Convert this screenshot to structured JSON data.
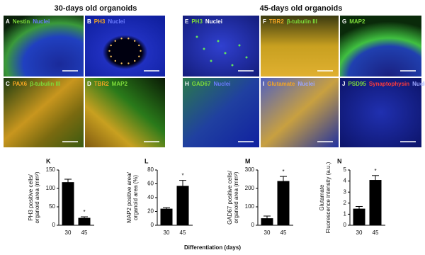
{
  "headings": [
    "30-days old organoids",
    "45-days old organoids"
  ],
  "panels": [
    {
      "letter": "A",
      "label": [
        {
          "text": "Nestin",
          "color": "#7ddc3a"
        },
        {
          "text": "Nuclei",
          "color": "#6b7bff"
        }
      ]
    },
    {
      "letter": "B",
      "label": [
        {
          "text": "PH3",
          "color": "#f5a623"
        },
        {
          "text": "Nuclei",
          "color": "#6b7bff"
        }
      ]
    },
    {
      "letter": "C",
      "label": [
        {
          "text": "PAX6",
          "color": "#f5a623"
        },
        {
          "text": "β-tubulin III",
          "color": "#7ddc3a"
        }
      ]
    },
    {
      "letter": "D",
      "label": [
        {
          "text": "TBR2",
          "color": "#f5a623"
        },
        {
          "text": "MAP2",
          "color": "#7ddc3a"
        }
      ]
    },
    {
      "letter": "E",
      "label": [
        {
          "text": "PH3",
          "color": "#7ddc3a"
        },
        {
          "text": "Nuclei",
          "color": "#ffffff"
        }
      ]
    },
    {
      "letter": "F",
      "label": [
        {
          "text": "TBR2",
          "color": "#f5a623"
        },
        {
          "text": "β-tubulin III",
          "color": "#7ddc3a"
        }
      ]
    },
    {
      "letter": "G",
      "label": [
        {
          "text": "MAP2",
          "color": "#7ddc3a"
        }
      ]
    },
    {
      "letter": "H",
      "label": [
        {
          "text": "GAD67",
          "color": "#7ddc3a"
        },
        {
          "text": "Nuclei",
          "color": "#6b7bff"
        }
      ]
    },
    {
      "letter": "I",
      "label": [
        {
          "text": "Glutamate",
          "color": "#f5a623"
        },
        {
          "text": "Nuclei",
          "color": "#9aa5ff"
        }
      ]
    },
    {
      "letter": "J",
      "label": [
        {
          "text": "PSD95",
          "color": "#7ddc3a"
        },
        {
          "text": "Synaptophysin",
          "color": "#ff3b3b"
        },
        {
          "text": "Nuclei",
          "color": "#9aa5ff"
        }
      ]
    }
  ],
  "xlabel": "Differentiation (days)",
  "chart_data": [
    {
      "type": "bar",
      "letter": "K",
      "ylabel": [
        "PH3 positive cells/",
        "organoid area (mm²)"
      ],
      "categories": [
        "30",
        "45"
      ],
      "values": [
        117,
        20
      ],
      "errors": [
        8,
        3
      ],
      "color": "#000000",
      "ylim": [
        0,
        150
      ],
      "yticks": [
        0,
        50,
        100,
        150
      ],
      "annotation": "*"
    },
    {
      "type": "bar",
      "letter": "L",
      "ylabel": [
        "MAP2 positive area/",
        "organoid area (%)"
      ],
      "categories": [
        "30",
        "45"
      ],
      "values": [
        24,
        57
      ],
      "errors": [
        1.5,
        8
      ],
      "color": "#000000",
      "ylim": [
        0,
        80
      ],
      "yticks": [
        0,
        20,
        40,
        60,
        80
      ],
      "annotation": "*"
    },
    {
      "type": "bar",
      "letter": "M",
      "ylabel": [
        "GAD67 positive cells/",
        "organoid area (mm²)"
      ],
      "categories": [
        "30",
        "45"
      ],
      "values": [
        38,
        240
      ],
      "errors": [
        12,
        25
      ],
      "color": "#000000",
      "ylim": [
        0,
        300
      ],
      "yticks": [
        0,
        100,
        200,
        300
      ],
      "annotation": "*"
    },
    {
      "type": "bar",
      "letter": "N",
      "ylabel": [
        "Glutamate",
        "Fluorescence intensity (a.u.)"
      ],
      "categories": [
        "30",
        "45"
      ],
      "values": [
        1.5,
        4.1
      ],
      "errors": [
        0.2,
        0.4
      ],
      "color": "#000000",
      "ylim": [
        0,
        5
      ],
      "yticks": [
        0,
        1,
        2,
        3,
        4,
        5
      ],
      "annotation": "*"
    }
  ]
}
